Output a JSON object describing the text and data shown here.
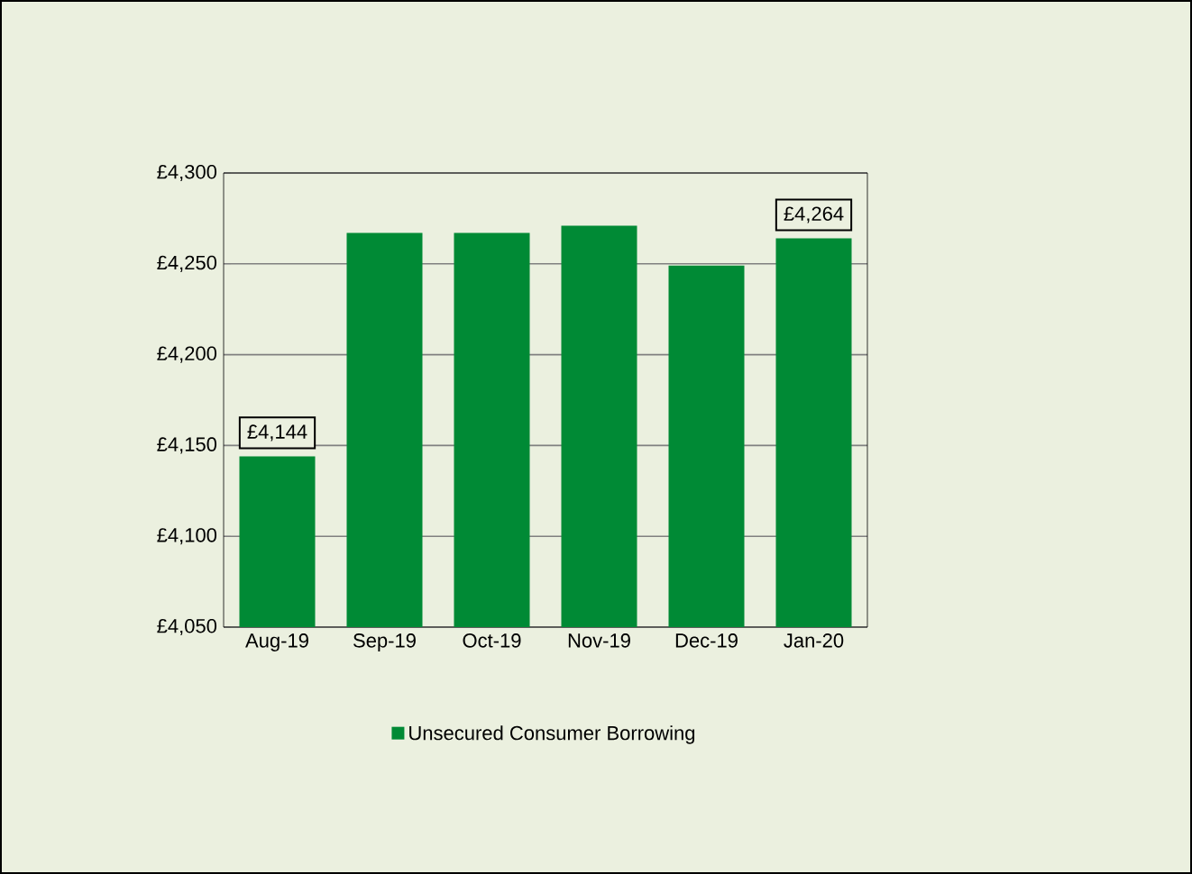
{
  "chart_data": {
    "type": "bar",
    "categories": [
      "Aug-19",
      "Sep-19",
      "Oct-19",
      "Nov-19",
      "Dec-19",
      "Jan-20"
    ],
    "series": [
      {
        "name": "Unsecured Consumer Borrowing",
        "color": "#008a35",
        "values": [
          4144,
          4267,
          4267,
          4271,
          4249,
          4264
        ],
        "value_labels": [
          "£4,144",
          null,
          null,
          null,
          null,
          "£4,264"
        ]
      }
    ],
    "ylim": [
      4050,
      4300
    ],
    "yticks": [
      {
        "value": 4050,
        "label": "£4,050"
      },
      {
        "value": 4100,
        "label": "£4,100"
      },
      {
        "value": 4150,
        "label": "£4,150"
      },
      {
        "value": 4200,
        "label": "£4,200"
      },
      {
        "value": 4250,
        "label": "£4,250"
      },
      {
        "value": 4300,
        "label": "£4,300"
      }
    ],
    "grid": "y",
    "legend": "bottom"
  }
}
